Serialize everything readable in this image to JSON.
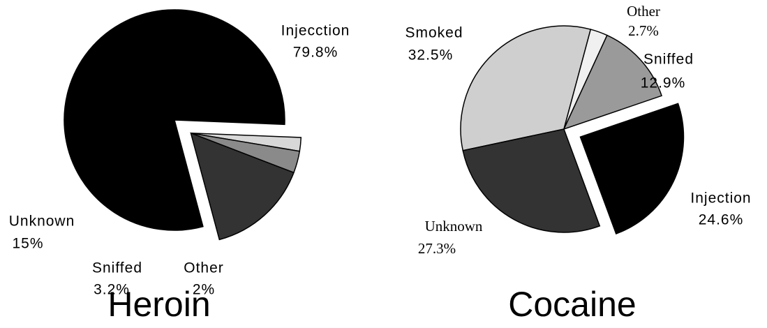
{
  "chart_data": [
    {
      "type": "pie",
      "title": "Heroin",
      "categories": [
        "Injecction",
        "Other",
        "Sniffed",
        "Unknown"
      ],
      "values": [
        79.8,
        2,
        3.2,
        15
      ],
      "value_labels": [
        "79.8%",
        "2%",
        "3.2%",
        "15%"
      ],
      "colors": [
        "#000000",
        "#d8d8d8",
        "#8a8a8a",
        "#333333"
      ],
      "explode": [
        false,
        true,
        true,
        true
      ]
    },
    {
      "type": "pie",
      "title": "Cocaine",
      "categories": [
        "Smoked",
        "Other",
        "Sniffed",
        "Injection",
        "Unknown"
      ],
      "values": [
        32.5,
        2.7,
        12.9,
        24.6,
        27.3
      ],
      "value_labels": [
        "32.5%",
        "2.7%",
        "12.9%",
        "24.6%",
        "27.3%"
      ],
      "colors": [
        "#cfcfcf",
        "#f0f0f0",
        "#9a9a9a",
        "#000000",
        "#333333"
      ],
      "explode": [
        false,
        false,
        false,
        true,
        false
      ]
    }
  ]
}
